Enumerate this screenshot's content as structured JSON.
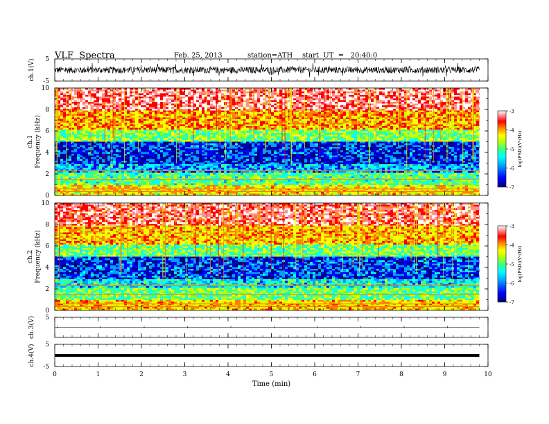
{
  "header": {
    "title": "VLF  Spectra",
    "date": "Feb. 25, 2013",
    "station": "station=ATH",
    "start": "start  UT  =   20:40:0"
  },
  "chart_data": [
    {
      "type": "line",
      "panel": "ch1-waveform",
      "ylabel": "ch.1(V)",
      "ylim": [
        -5,
        5
      ],
      "ytick_labels": [
        "5",
        "-5"
      ],
      "x_range_min": [
        0,
        9.8
      ],
      "baseline_v": 0.0,
      "note_amplitude_v": 1.5
    },
    {
      "type": "heatmap",
      "panel": "ch1-spectrogram",
      "ylabel_channel": "ch.1",
      "ylabel": "Frequency  (kHz)",
      "ylim": [
        0,
        10
      ],
      "ytick_labels": [
        "0",
        "2",
        "4",
        "6",
        "8",
        "10"
      ],
      "x_range_min": [
        0,
        9.8
      ],
      "colorbar_label": "log(PSD)(V²/Hz)",
      "colorbar_range": [
        -7,
        -3
      ],
      "colorbar_ticks": [
        "-3",
        "-4",
        "-5",
        "-6",
        "-7"
      ],
      "bands": [
        {
          "f_khz": [
            8.0,
            10.0
          ],
          "level": -3.4
        },
        {
          "f_khz": [
            6.2,
            8.0
          ],
          "level": -4.3
        },
        {
          "f_khz": [
            5.0,
            6.2
          ],
          "level": -5.2
        },
        {
          "f_khz": [
            3.0,
            5.0
          ],
          "level": -6.6
        },
        {
          "f_khz": [
            2.2,
            3.0
          ],
          "level": -6.1
        },
        {
          "f_khz": [
            1.0,
            2.2
          ],
          "level": -5.4
        },
        {
          "f_khz": [
            0.0,
            1.0
          ],
          "level": -4.6
        }
      ]
    },
    {
      "type": "heatmap",
      "panel": "ch2-spectrogram",
      "ylabel_channel": "ch.2",
      "ylabel": "Frequency  (kHz)",
      "ylim": [
        0,
        10
      ],
      "ytick_labels": [
        "0",
        "2",
        "4",
        "6",
        "8",
        "10"
      ],
      "x_range_min": [
        0,
        9.8
      ],
      "colorbar_label": "log(PSD)(V²/Hz)",
      "colorbar_range": [
        -7,
        -3
      ],
      "colorbar_ticks": [
        "-3",
        "-4",
        "-5",
        "-6",
        "-7"
      ],
      "bands": [
        {
          "f_khz": [
            8.0,
            10.0
          ],
          "level": -3.5
        },
        {
          "f_khz": [
            6.2,
            8.0
          ],
          "level": -4.4
        },
        {
          "f_khz": [
            5.0,
            6.2
          ],
          "level": -5.3
        },
        {
          "f_khz": [
            3.0,
            5.0
          ],
          "level": -6.5
        },
        {
          "f_khz": [
            2.2,
            3.0
          ],
          "level": -5.8
        },
        {
          "f_khz": [
            1.0,
            2.2
          ],
          "level": -5.3
        },
        {
          "f_khz": [
            0.0,
            1.0
          ],
          "level": -4.5
        }
      ]
    },
    {
      "type": "line",
      "panel": "ch3-waveform",
      "ylabel": "ch.3(V)",
      "ylim": [
        -5,
        5
      ],
      "ytick_labels": [
        "5"
      ],
      "x_range_min": [
        0,
        9.8
      ],
      "baseline_v": 0.0
    },
    {
      "type": "line",
      "panel": "ch4-waveform",
      "ylabel": "ch.4(V)",
      "ylim": [
        -5,
        5
      ],
      "ytick_labels": [
        "5",
        "-5"
      ],
      "x_range_min": [
        0,
        9.8
      ],
      "baseline_v": 0.0
    }
  ],
  "x_axis": {
    "label": "Time  (min)",
    "range": [
      0,
      10
    ],
    "ticks": [
      "0",
      "1",
      "2",
      "3",
      "4",
      "5",
      "6",
      "7",
      "8",
      "9",
      "10"
    ]
  },
  "colors": {
    "colormap": [
      "#000080",
      "#0000ff",
      "#00a0ff",
      "#00ffff",
      "#40ff80",
      "#c0ff00",
      "#ffff00",
      "#ff8000",
      "#ff0000",
      "#ff9090",
      "#ffffff"
    ]
  }
}
